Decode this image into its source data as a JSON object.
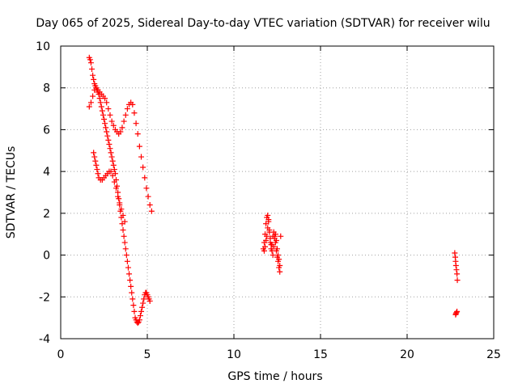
{
  "chart_data": {
    "type": "scatter",
    "title": "Day 065 of 2025, Sidereal Day-to-day VTEC variation (SDTVAR) for receiver wilu",
    "xlabel": "GPS time / hours",
    "ylabel": "SDTVAR / TECUs",
    "xlim": [
      0,
      25
    ],
    "ylim": [
      -4,
      10
    ],
    "xticks": [
      0,
      5,
      10,
      15,
      20,
      25
    ],
    "yticks": [
      -4,
      -2,
      0,
      2,
      4,
      6,
      8,
      10
    ],
    "grid": true,
    "marker": "plus",
    "color": "#ff0000",
    "series": [
      {
        "x": [
          1.65,
          1.7,
          1.75,
          1.8,
          1.85,
          1.9,
          1.95,
          2.0,
          2.05,
          2.1,
          2.15,
          2.2,
          2.25,
          2.3,
          2.35,
          2.4,
          2.45,
          2.5,
          2.55,
          2.6,
          2.65,
          2.7,
          2.75,
          2.8,
          2.85,
          2.9,
          2.95,
          3.0,
          3.05,
          3.1,
          3.15,
          3.2,
          3.25,
          3.3,
          3.35,
          3.4,
          3.45,
          3.5,
          3.55,
          3.6,
          3.65,
          3.7,
          3.75,
          3.8,
          3.85,
          3.9,
          3.95,
          4.0,
          4.05,
          4.1,
          4.15,
          4.2,
          4.25,
          4.3,
          4.35,
          4.4,
          4.45,
          4.5,
          4.55,
          4.6,
          4.65,
          4.7,
          4.75,
          4.8,
          4.85,
          4.9,
          4.95,
          5.0,
          5.05,
          5.1,
          5.15
        ],
        "y": [
          9.45,
          9.35,
          9.2,
          8.9,
          8.6,
          8.4,
          8.2,
          8.1,
          8.0,
          7.9,
          7.8,
          7.7,
          7.5,
          7.3,
          7.1,
          6.9,
          6.7,
          6.5,
          6.3,
          6.1,
          5.9,
          5.7,
          5.5,
          5.3,
          5.1,
          4.9,
          4.7,
          4.5,
          4.3,
          4.1,
          3.9,
          3.6,
          3.3,
          3.0,
          2.7,
          2.4,
          2.1,
          1.8,
          1.5,
          1.2,
          0.9,
          0.6,
          0.3,
          0.0,
          -0.3,
          -0.6,
          -0.9,
          -1.2,
          -1.5,
          -1.8,
          -2.1,
          -2.4,
          -2.7,
          -3.0,
          -3.1,
          -3.2,
          -3.25,
          -3.2,
          -3.1,
          -2.9,
          -2.7,
          -2.5,
          -2.3,
          -2.1,
          -1.9,
          -1.8,
          -1.8,
          -1.9,
          -2.0,
          -2.1,
          -2.2
        ]
      },
      {
        "x": [
          1.65,
          1.75,
          1.85,
          1.95,
          2.05,
          2.15,
          2.25,
          2.35,
          2.45,
          2.55,
          2.65,
          2.75,
          2.85,
          2.95,
          3.05,
          3.15,
          3.25,
          3.35,
          3.45,
          3.55,
          3.65,
          3.75,
          3.85,
          3.95,
          4.05,
          4.15,
          4.25,
          4.35,
          4.45,
          4.55,
          4.65,
          4.75,
          4.85,
          4.95,
          5.05,
          5.15,
          5.25
        ],
        "y": [
          7.1,
          7.3,
          7.6,
          7.9,
          8.0,
          7.9,
          7.8,
          7.7,
          7.6,
          7.5,
          7.3,
          7.0,
          6.7,
          6.4,
          6.2,
          6.0,
          5.9,
          5.8,
          5.9,
          6.1,
          6.4,
          6.7,
          7.0,
          7.2,
          7.3,
          7.2,
          6.8,
          6.3,
          5.8,
          5.2,
          4.7,
          4.2,
          3.7,
          3.2,
          2.8,
          2.4,
          2.1
        ]
      },
      {
        "x": [
          1.9,
          1.95,
          2.0,
          2.05,
          2.1,
          2.15,
          2.2,
          2.3,
          2.4,
          2.5,
          2.6,
          2.7,
          2.8,
          2.9,
          3.0,
          3.1,
          3.2,
          3.3,
          3.4,
          3.5,
          3.6,
          3.7
        ],
        "y": [
          4.9,
          4.7,
          4.5,
          4.3,
          4.1,
          3.9,
          3.7,
          3.6,
          3.6,
          3.7,
          3.8,
          3.9,
          4.0,
          4.0,
          3.8,
          3.5,
          3.2,
          2.8,
          2.5,
          2.2,
          1.9,
          1.6
        ]
      },
      {
        "x": [
          11.7,
          11.75,
          11.8,
          11.85,
          11.9,
          11.95,
          12.0,
          12.05,
          12.1,
          12.15,
          12.2,
          12.25,
          12.3,
          12.35,
          12.4,
          12.45,
          12.5,
          12.55,
          12.6,
          12.65,
          11.75,
          11.8,
          11.85,
          11.9,
          11.95,
          12.0,
          12.05,
          12.1,
          12.15,
          12.2,
          12.25,
          12.3,
          12.35,
          12.4,
          12.45,
          12.5,
          12.55,
          12.6,
          12.65,
          12.7
        ],
        "y": [
          0.3,
          0.6,
          1.0,
          1.5,
          1.8,
          1.9,
          1.6,
          1.2,
          0.8,
          0.5,
          0.2,
          0.0,
          0.4,
          0.8,
          1.0,
          0.7,
          0.3,
          0.0,
          -0.2,
          -0.5,
          0.2,
          0.4,
          0.7,
          0.9,
          1.3,
          1.7,
          1.1,
          0.6,
          0.3,
          0.5,
          0.9,
          1.1,
          0.9,
          0.6,
          0.2,
          -0.1,
          -0.3,
          -0.6,
          -0.8,
          0.9
        ]
      },
      {
        "x": [
          22.75,
          22.78,
          22.8,
          22.82,
          22.85,
          22.88,
          22.9,
          22.8,
          22.82,
          22.85,
          22.88
        ],
        "y": [
          0.1,
          -0.1,
          -0.3,
          -0.5,
          -0.7,
          -0.9,
          -1.2,
          -2.85,
          -2.8,
          -2.75,
          -2.7
        ]
      }
    ]
  }
}
